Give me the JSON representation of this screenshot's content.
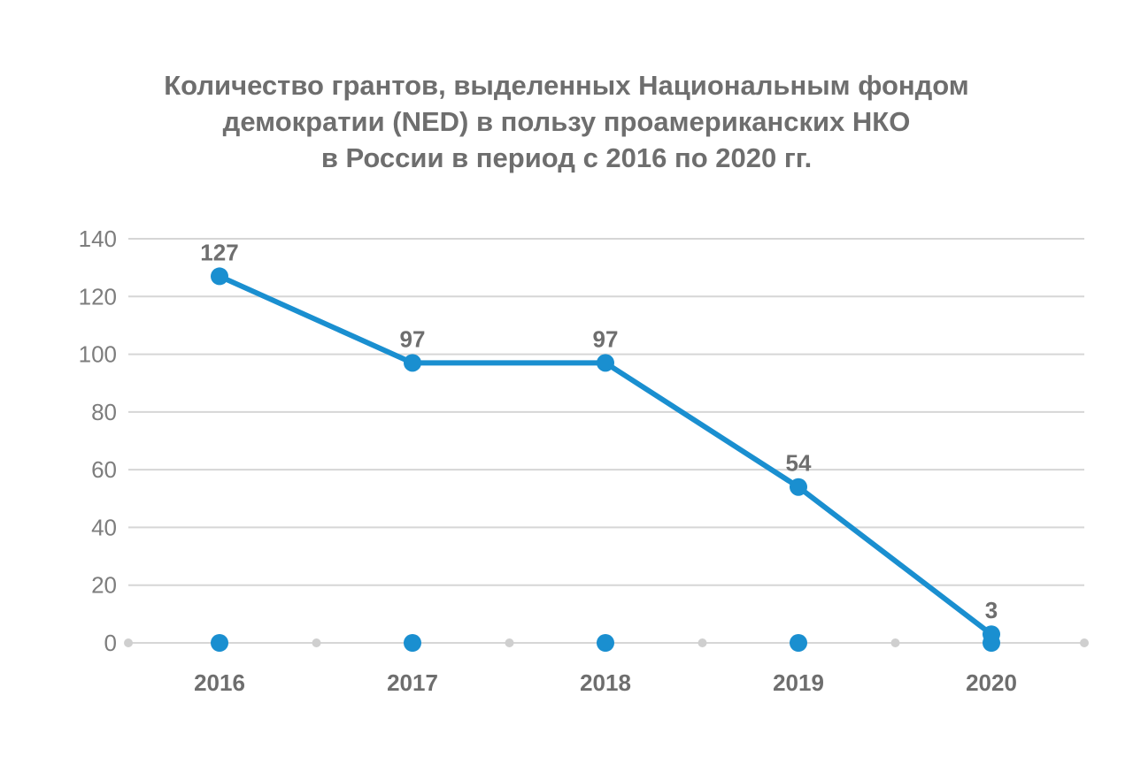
{
  "chart_data": {
    "type": "line",
    "title_lines": [
      "Количество грантов, выделенных Национальным фондом",
      "демократии (NED) в пользу проамериканских НКО",
      "в России в период с 2016 по 2020 гг."
    ],
    "categories": [
      "2016",
      "2017",
      "2018",
      "2019",
      "2020"
    ],
    "series": [
      {
        "values": [
          127,
          97,
          97,
          54,
          3
        ],
        "color": "#1a8fd0"
      }
    ],
    "data_labels": [
      "127",
      "97",
      "97",
      "54",
      "3"
    ],
    "yticks": [
      "0",
      "20",
      "40",
      "60",
      "80",
      "100",
      "120",
      "140"
    ],
    "ylim": [
      0,
      140
    ],
    "grid": true,
    "colors": {
      "line": "#1a8fd0",
      "grid": "#d6d6d6",
      "axis_dot": "#cfcfcf"
    }
  }
}
